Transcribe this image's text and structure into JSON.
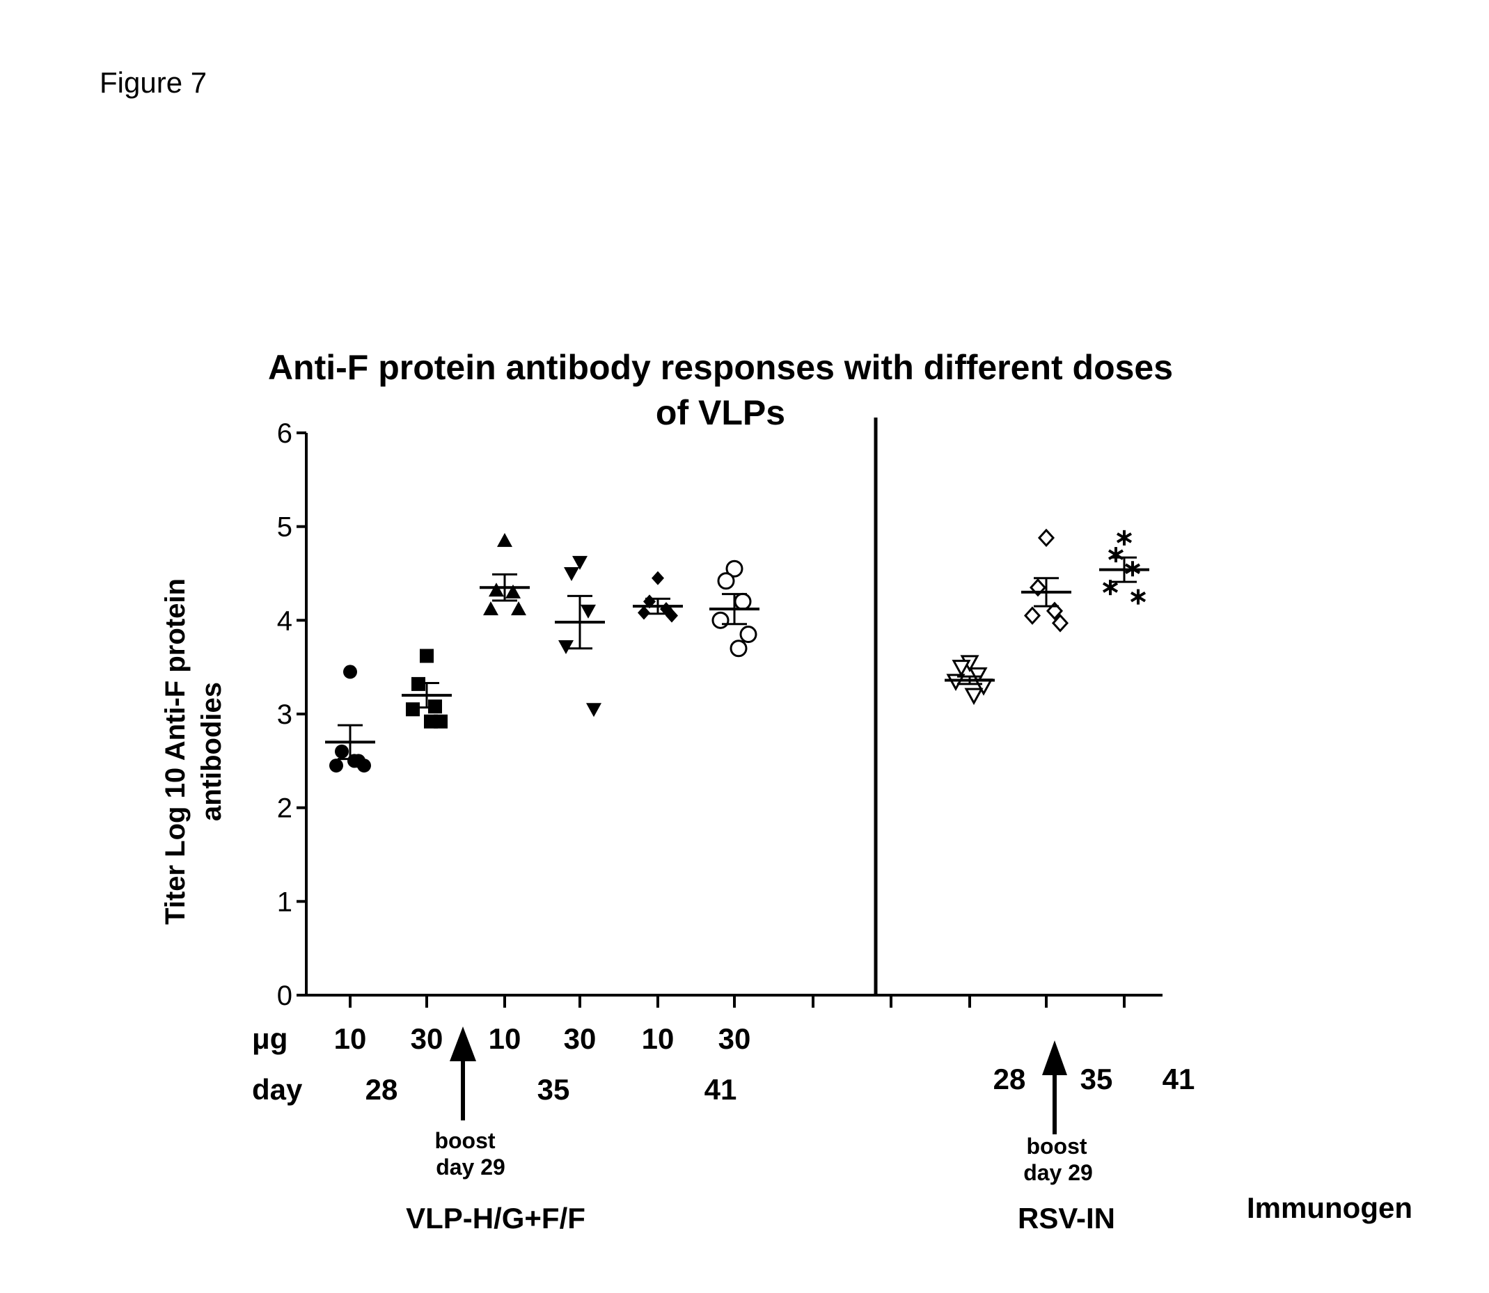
{
  "figure_label": "Figure 7",
  "chart_data": {
    "type": "scatter",
    "title": "Anti-F protein antibody responses with different doses of VLPs",
    "title_lines": [
      "Anti-F protein antibody responses with different doses",
      "of VLPs"
    ],
    "ylabel_lines": [
      "Titer Log 10 Anti-F protein",
      "antibodies"
    ],
    "ylim": [
      0,
      6
    ],
    "yticks": [
      "0",
      "1",
      "2",
      "3",
      "4",
      "5",
      "6"
    ],
    "grid": false,
    "legend": "none",
    "dose_row_label": "μg",
    "day_row_label": "day",
    "xlabel": "Immunogen",
    "boost_label_lines": [
      "boost",
      "day 29"
    ],
    "groups": [
      {
        "name": "VLP-H/G+F/F",
        "days": [
          "28",
          "35",
          "41"
        ],
        "series": [
          {
            "dose": "10",
            "day": "28",
            "marker": "circle-filled",
            "points": [
              3.45,
              2.6,
              2.5,
              2.45,
              2.45,
              2.5
            ],
            "mean": 2.7,
            "sem": 0.18
          },
          {
            "dose": "30",
            "day": "28",
            "marker": "square-filled",
            "points": [
              3.62,
              3.32,
              3.08,
              3.05,
              2.92,
              2.92
            ],
            "mean": 3.2,
            "sem": 0.13
          },
          {
            "dose": "10",
            "day": "35",
            "marker": "triangle-up-filled",
            "points": [
              4.85,
              4.32,
              4.3,
              4.12,
              4.12
            ],
            "mean": 4.35,
            "sem": 0.14
          },
          {
            "dose": "30",
            "day": "35",
            "marker": "triangle-down-filled",
            "points": [
              4.62,
              4.5,
              4.1,
              3.72,
              3.05
            ],
            "mean": 3.98,
            "sem": 0.28
          },
          {
            "dose": "10",
            "day": "41",
            "marker": "diamond-filled",
            "points": [
              4.45,
              4.2,
              4.12,
              4.08,
              4.05
            ],
            "mean": 4.15,
            "sem": 0.08
          },
          {
            "dose": "30",
            "day": "41",
            "marker": "circle-open",
            "points": [
              4.55,
              4.42,
              4.2,
              4.0,
              3.85,
              3.7
            ],
            "mean": 4.12,
            "sem": 0.16
          }
        ]
      },
      {
        "name": "RSV-IN",
        "days": [
          "28",
          "35",
          "41"
        ],
        "series": [
          {
            "day": "28",
            "marker": "triangle-down-open",
            "points": [
              3.55,
              3.5,
              3.42,
              3.35,
              3.3,
              3.2
            ],
            "mean": 3.36,
            "sem": 0.04
          },
          {
            "day": "35",
            "marker": "diamond-open",
            "points": [
              4.88,
              4.35,
              4.1,
              4.05,
              3.97
            ],
            "mean": 4.3,
            "sem": 0.15
          },
          {
            "day": "41",
            "marker": "asterisk",
            "points": [
              4.88,
              4.7,
              4.55,
              4.35,
              4.25
            ],
            "mean": 4.54,
            "sem": 0.13
          }
        ]
      }
    ]
  }
}
